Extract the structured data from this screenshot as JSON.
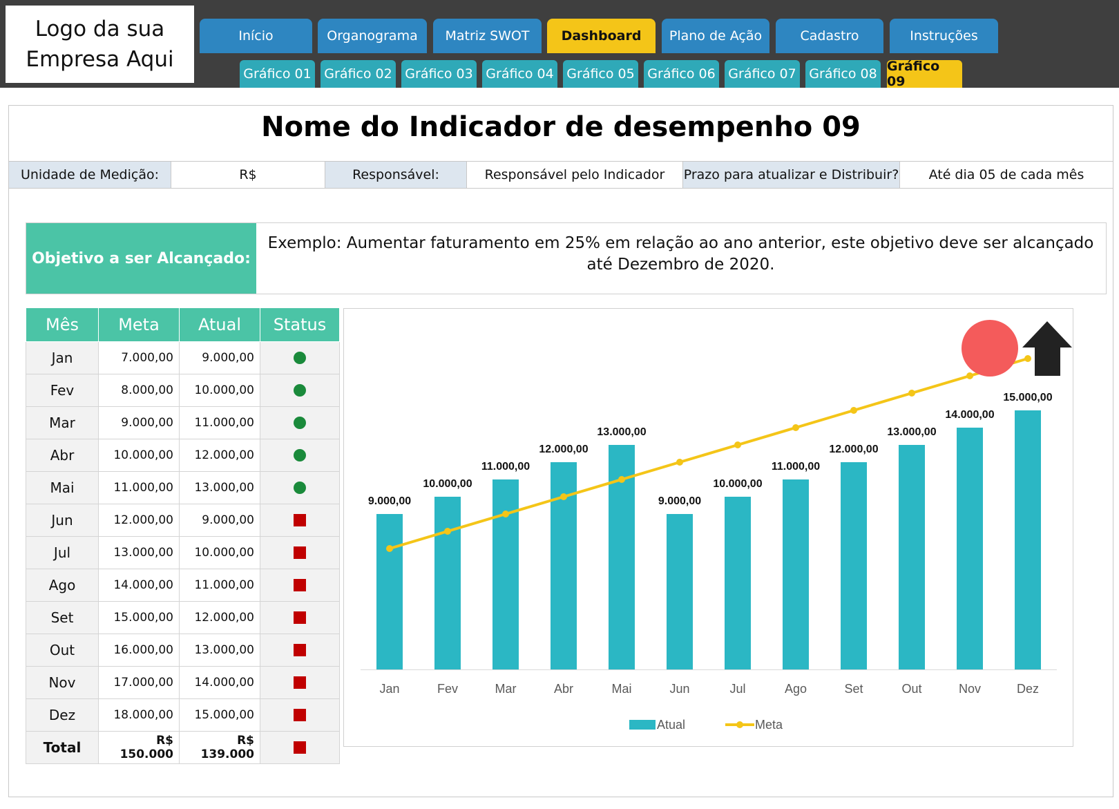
{
  "logo": {
    "line1": "Logo da sua",
    "line2": "Empresa Aqui"
  },
  "nav": {
    "tabs": [
      "Início",
      "Organograma",
      "Matriz SWOT",
      "Dashboard",
      "Plano de Ação",
      "Cadastro",
      "Instruções"
    ],
    "active_tab": "Dashboard",
    "subtabs": [
      "Gráfico 01",
      "Gráfico 02",
      "Gráfico 03",
      "Gráfico 04",
      "Gráfico 05",
      "Gráfico 06",
      "Gráfico 07",
      "Gráfico 08",
      "Gráfico 09"
    ],
    "active_subtab": "Gráfico 09"
  },
  "indicator": {
    "title": "Nome do Indicador de desempenho 09",
    "unit_label": "Unidade de Medição:",
    "unit_value": "R$",
    "owner_label": "Responsável:",
    "owner_value": "Responsável pelo Indicador",
    "deadline_label": "Prazo para atualizar e Distribuir?",
    "deadline_value": "Até dia 05 de cada mês"
  },
  "objective": {
    "label": "Objetivo a ser Alcançado:",
    "text": "Exemplo: Aumentar faturamento em 25% em relação ao ano anterior, este objetivo deve ser alcançado até Dezembro de 2020."
  },
  "table": {
    "headers": [
      "Mês",
      "Meta",
      "Atual",
      "Status"
    ],
    "rows": [
      {
        "mes": "Jan",
        "meta": "7.000,00",
        "atual": "9.000,00",
        "status": "green"
      },
      {
        "mes": "Fev",
        "meta": "8.000,00",
        "atual": "10.000,00",
        "status": "green"
      },
      {
        "mes": "Mar",
        "meta": "9.000,00",
        "atual": "11.000,00",
        "status": "green"
      },
      {
        "mes": "Abr",
        "meta": "10.000,00",
        "atual": "12.000,00",
        "status": "green"
      },
      {
        "mes": "Mai",
        "meta": "11.000,00",
        "atual": "13.000,00",
        "status": "green"
      },
      {
        "mes": "Jun",
        "meta": "12.000,00",
        "atual": "9.000,00",
        "status": "red"
      },
      {
        "mes": "Jul",
        "meta": "13.000,00",
        "atual": "10.000,00",
        "status": "red"
      },
      {
        "mes": "Ago",
        "meta": "14.000,00",
        "atual": "11.000,00",
        "status": "red"
      },
      {
        "mes": "Set",
        "meta": "15.000,00",
        "atual": "12.000,00",
        "status": "red"
      },
      {
        "mes": "Out",
        "meta": "16.000,00",
        "atual": "13.000,00",
        "status": "red"
      },
      {
        "mes": "Nov",
        "meta": "17.000,00",
        "atual": "14.000,00",
        "status": "red"
      },
      {
        "mes": "Dez",
        "meta": "18.000,00",
        "atual": "15.000,00",
        "status": "red"
      }
    ],
    "total": {
      "mes": "Total",
      "meta": "R$ 150.000",
      "atual": "R$ 139.000",
      "status": "red"
    }
  },
  "colors": {
    "bar": "#2bb7c4",
    "line": "#f4c518",
    "status_green": "#1a8a3b",
    "status_red": "#c00000",
    "indicator_circle": "#f45b5b",
    "arrow": "#222222"
  },
  "indicator_icons": {
    "circle": "status-circle",
    "arrow": "up-arrow-icon"
  },
  "chart_data": {
    "type": "bar",
    "categories": [
      "Jan",
      "Fev",
      "Mar",
      "Abr",
      "Mai",
      "Jun",
      "Jul",
      "Ago",
      "Set",
      "Out",
      "Nov",
      "Dez"
    ],
    "series": [
      {
        "name": "Atual",
        "type": "bar",
        "values": [
          9000,
          10000,
          11000,
          12000,
          13000,
          9000,
          10000,
          11000,
          12000,
          13000,
          14000,
          15000
        ],
        "labels": [
          "9.000,00",
          "10.000,00",
          "11.000,00",
          "12.000,00",
          "13.000,00",
          "9.000,00",
          "10.000,00",
          "11.000,00",
          "12.000,00",
          "13.000,00",
          "14.000,00",
          "15.000,00"
        ]
      },
      {
        "name": "Meta",
        "type": "line",
        "values": [
          7000,
          8000,
          9000,
          10000,
          11000,
          12000,
          13000,
          14000,
          15000,
          16000,
          17000,
          18000
        ]
      }
    ],
    "ylim": [
      0,
      18000
    ],
    "grid": false,
    "legend": "bottom"
  }
}
